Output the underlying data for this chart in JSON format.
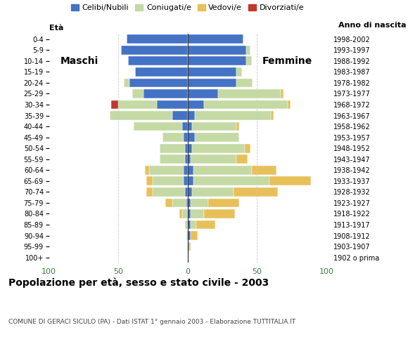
{
  "age_groups": [
    "100+",
    "95-99",
    "90-94",
    "85-89",
    "80-84",
    "75-79",
    "70-74",
    "65-69",
    "60-64",
    "55-59",
    "50-54",
    "45-49",
    "40-44",
    "35-39",
    "30-34",
    "25-29",
    "20-24",
    "15-19",
    "10-14",
    "5-9",
    "0-4"
  ],
  "birth_years": [
    "1902 o prima",
    "1903-1907",
    "1908-1912",
    "1913-1917",
    "1918-1922",
    "1923-1927",
    "1928-1932",
    "1933-1937",
    "1938-1942",
    "1943-1947",
    "1948-1952",
    "1953-1957",
    "1958-1962",
    "1963-1967",
    "1968-1972",
    "1973-1977",
    "1978-1982",
    "1983-1987",
    "1988-1992",
    "1993-1997",
    "1998-2002"
  ],
  "male_celibe": [
    0,
    0,
    0,
    0,
    0,
    1,
    2,
    3,
    3,
    2,
    2,
    3,
    4,
    11,
    22,
    32,
    42,
    38,
    43,
    48,
    44
  ],
  "male_coniugato": [
    0,
    0,
    1,
    2,
    4,
    10,
    23,
    22,
    25,
    18,
    18,
    15,
    35,
    45,
    28,
    8,
    4,
    0,
    0,
    0,
    0
  ],
  "male_vedovo": [
    0,
    0,
    0,
    0,
    2,
    5,
    5,
    5,
    3,
    0,
    0,
    0,
    0,
    0,
    0,
    0,
    0,
    0,
    0,
    0,
    0
  ],
  "male_divorziato": [
    0,
    0,
    0,
    0,
    0,
    0,
    0,
    0,
    0,
    0,
    0,
    0,
    0,
    0,
    5,
    0,
    0,
    0,
    0,
    0,
    0
  ],
  "female_nubile": [
    0,
    1,
    2,
    2,
    2,
    2,
    3,
    4,
    4,
    2,
    3,
    5,
    3,
    5,
    12,
    22,
    35,
    35,
    42,
    42,
    40
  ],
  "female_coniugata": [
    0,
    0,
    0,
    4,
    10,
    13,
    30,
    55,
    42,
    33,
    38,
    32,
    32,
    55,
    60,
    45,
    12,
    4,
    4,
    3,
    0
  ],
  "female_vedova": [
    0,
    1,
    5,
    14,
    22,
    22,
    32,
    30,
    18,
    8,
    4,
    0,
    2,
    2,
    2,
    2,
    0,
    0,
    0,
    0,
    0
  ],
  "female_divorziata": [
    0,
    0,
    0,
    0,
    0,
    0,
    0,
    0,
    0,
    0,
    0,
    0,
    0,
    0,
    0,
    0,
    0,
    0,
    0,
    0,
    0
  ],
  "color_celibe": "#4472C4",
  "color_coniug": "#C5D9A4",
  "color_vedovo": "#E8C05A",
  "color_divorzio": "#C0392B",
  "legend_labels": [
    "Celibi/Nubili",
    "Coniugati/e",
    "Vedovi/e",
    "Divorziati/e"
  ],
  "title": "Popolazione per età, sesso e stato civile - 2003",
  "subtitle": "COMUNE DI GERACI SICULO (PA) - Dati ISTAT 1° gennaio 2003 - Elaborazione TUTTITALIA.IT",
  "label_maschi": "Maschi",
  "label_femmine": "Femmine",
  "label_eta": "Età",
  "label_anno": "Anno di nascita",
  "xlim": 100,
  "bar_height": 0.82,
  "xtick_color": "#3a7d3a",
  "background_color": "#ffffff"
}
